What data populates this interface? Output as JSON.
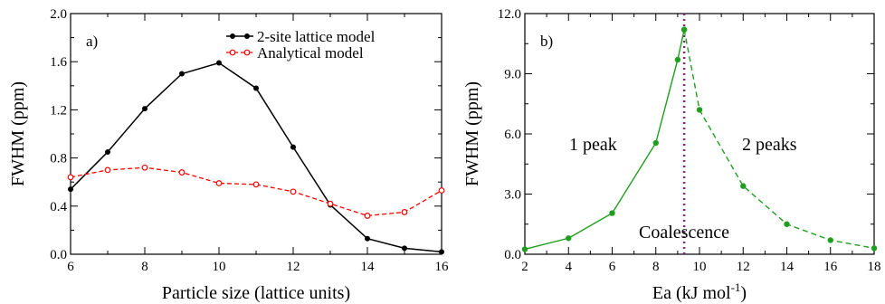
{
  "chart_data": [
    {
      "type": "line",
      "panel_label": "a)",
      "xlabel": "Particle size (lattice units)",
      "ylabel": "FWHM (ppm)",
      "xlim": [
        6,
        16
      ],
      "ylim": [
        0,
        2.0
      ],
      "x_ticks": [
        "6",
        "8",
        "10",
        "12",
        "14",
        "16"
      ],
      "y_ticks": [
        "0.0",
        "0.4",
        "0.8",
        "1.2",
        "1.6",
        "2.0"
      ],
      "legend_position": "top-right",
      "series": [
        {
          "name": "2-site lattice model",
          "color": "#000000",
          "style": "solid",
          "marker": "filled-circle",
          "x": [
            6,
            7,
            8,
            9,
            10,
            11,
            12,
            13,
            14,
            15,
            16
          ],
          "y": [
            0.54,
            0.85,
            1.21,
            1.5,
            1.59,
            1.38,
            0.89,
            0.41,
            0.13,
            0.05,
            0.02
          ]
        },
        {
          "name": "Analytical model",
          "color": "#ff0000",
          "style": "dashed",
          "marker": "open-circle",
          "x": [
            6,
            7,
            8,
            9,
            10,
            11,
            12,
            13,
            14,
            15,
            16
          ],
          "y": [
            0.64,
            0.7,
            0.72,
            0.68,
            0.59,
            0.58,
            0.52,
            0.42,
            0.32,
            0.35,
            0.53
          ]
        }
      ]
    },
    {
      "type": "line",
      "panel_label": "b)",
      "xlabel": "Ea (kJ mol-1)",
      "xlabel_main": "Ea (kJ mol",
      "xlabel_sup": "-1",
      "xlabel_end": ")",
      "ylabel": "FWHM (ppm)",
      "xlim": [
        2,
        18
      ],
      "ylim": [
        0,
        12.0
      ],
      "x_ticks": [
        "2",
        "4",
        "6",
        "8",
        "10",
        "12",
        "14",
        "16",
        "18"
      ],
      "y_ticks": [
        "0.0",
        "3.0",
        "6.0",
        "9.0",
        "12.0"
      ],
      "color": "#1f9e1f",
      "vline_x": 9.3,
      "vline_color": "#7a2a7a",
      "annotations": {
        "one_peak": "1 peak",
        "two_peaks": "2 peaks",
        "coalescence": "Coalescence"
      },
      "series": [
        {
          "segment": "one-peak",
          "style": "solid",
          "x": [
            2,
            4,
            6,
            8,
            9,
            9.3
          ],
          "y": [
            0.25,
            0.8,
            2.05,
            5.55,
            9.7,
            11.2
          ]
        },
        {
          "segment": "two-peaks",
          "style": "dashed",
          "x": [
            9.3,
            10,
            12,
            14,
            16,
            18
          ],
          "y": [
            11.2,
            7.2,
            3.4,
            1.5,
            0.7,
            0.3
          ]
        }
      ]
    }
  ]
}
